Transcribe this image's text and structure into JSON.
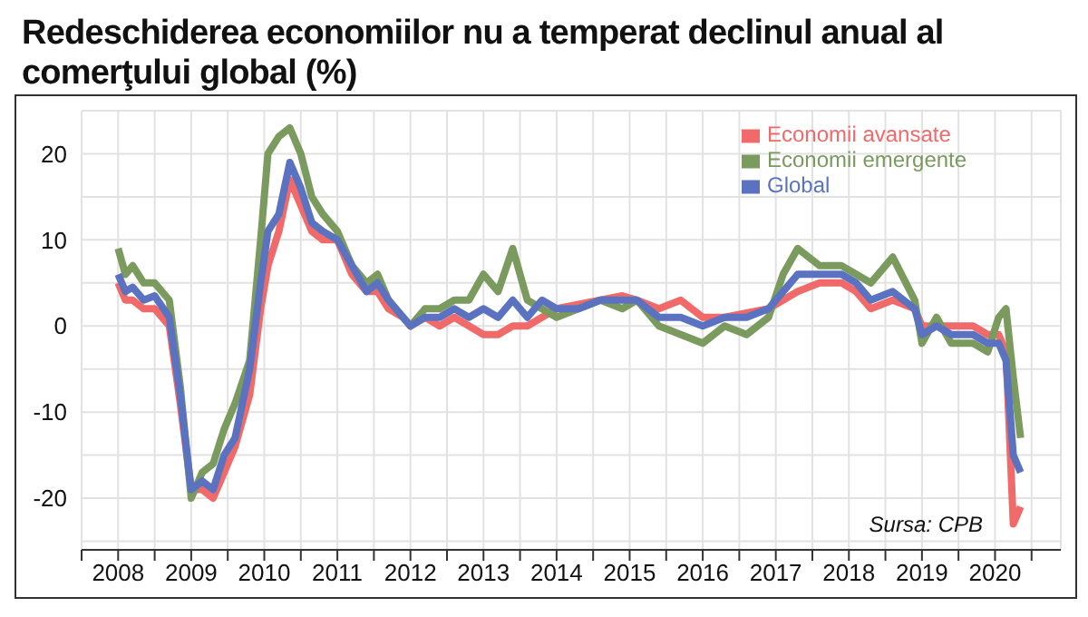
{
  "chart_data": {
    "type": "line",
    "title": "Redeschiderea economiilor nu a temperat declinul anual al comerţului global (%)",
    "x": [
      2008.0,
      2008.1,
      2008.2,
      2008.35,
      2008.5,
      2008.7,
      2008.85,
      2009.0,
      2009.15,
      2009.3,
      2009.45,
      2009.6,
      2009.8,
      2009.95,
      2010.05,
      2010.2,
      2010.35,
      2010.5,
      2010.65,
      2010.8,
      2011.0,
      2011.2,
      2011.4,
      2011.55,
      2011.7,
      2011.9,
      2012.0,
      2012.2,
      2012.4,
      2012.6,
      2012.8,
      2013.0,
      2013.2,
      2013.4,
      2013.6,
      2013.8,
      2014.0,
      2014.3,
      2014.6,
      2014.9,
      2015.1,
      2015.4,
      2015.7,
      2016.0,
      2016.3,
      2016.6,
      2016.9,
      2017.1,
      2017.3,
      2017.6,
      2017.9,
      2018.1,
      2018.3,
      2018.6,
      2018.9,
      2019.0,
      2019.2,
      2019.4,
      2019.7,
      2019.9,
      2020.05,
      2020.15,
      2020.25,
      2020.35
    ],
    "series": [
      {
        "name": "Economii avansate",
        "color": "#f06a6a",
        "values": [
          5,
          3,
          3,
          2,
          2,
          0,
          -9,
          -19,
          -19,
          -20,
          -17,
          -14,
          -8,
          2,
          7,
          11,
          17,
          14,
          11,
          10,
          10,
          6,
          4,
          4,
          2,
          1,
          0,
          1,
          0,
          1,
          0,
          -1,
          -1,
          0,
          0,
          1,
          2,
          2.5,
          3,
          3.5,
          3,
          2,
          3,
          1,
          1,
          1.5,
          2,
          3,
          4,
          5,
          5,
          4,
          2,
          3,
          2,
          0,
          0,
          0,
          0,
          -1,
          -1,
          -3,
          -23,
          -21
        ]
      },
      {
        "name": "Economii emergente",
        "color": "#7a9a5e",
        "values": [
          9,
          6,
          7,
          5,
          5,
          3,
          -7,
          -20,
          -17,
          -16,
          -12,
          -9,
          -4,
          10,
          20,
          22,
          23,
          20,
          15,
          13,
          11,
          7,
          5,
          6,
          3,
          1,
          0,
          2,
          2,
          3,
          3,
          6,
          4,
          9,
          3,
          2,
          1,
          2,
          3,
          2,
          3,
          0,
          -1,
          -2,
          0,
          -1,
          1,
          6,
          9,
          7,
          7,
          6,
          5,
          8,
          3,
          -2,
          1,
          -2,
          -2,
          -3,
          1,
          2,
          -6,
          -13
        ]
      },
      {
        "name": "Global",
        "color": "#5b72c0",
        "values": [
          6,
          4,
          4.5,
          3,
          3.5,
          1,
          -8,
          -19,
          -18,
          -19,
          -15,
          -13,
          -5,
          5,
          11,
          13,
          19,
          16,
          12,
          11,
          10,
          7,
          4,
          5,
          3,
          1,
          0,
          1,
          1,
          2,
          1,
          2,
          1,
          3,
          1,
          3,
          2,
          2,
          3,
          3,
          3,
          1,
          1,
          0,
          1,
          1,
          2,
          4,
          6,
          6,
          6,
          5,
          3,
          4,
          2,
          -1,
          0,
          -1,
          -1,
          -2,
          -2,
          -4,
          -15,
          -17
        ]
      }
    ],
    "xlim": [
      2007.5,
      2020.9
    ],
    "xticks": [
      {
        "value": 2007.5,
        "label": null
      },
      2008,
      {
        "value": 2008.5,
        "label": null
      },
      2009,
      {
        "value": 2009.5,
        "label": null
      },
      2010,
      {
        "value": 2010.5,
        "label": null
      },
      2011,
      {
        "value": 2011.5,
        "label": null
      },
      2012,
      {
        "value": 2012.5,
        "label": null
      },
      2013,
      {
        "value": 2013.5,
        "label": null
      },
      2014,
      {
        "value": 2014.5,
        "label": null
      },
      2015,
      {
        "value": 2015.5,
        "label": null
      },
      2016,
      {
        "value": 2016.5,
        "label": null
      },
      2017,
      {
        "value": 2017.5,
        "label": null
      },
      2018,
      {
        "value": 2018.5,
        "label": null
      },
      2019,
      {
        "value": 2019.5,
        "label": null
      },
      2020,
      {
        "value": 2020.5,
        "label": null
      }
    ],
    "ylim": [
      -26,
      25
    ],
    "yticks": [
      {
        "value": -25,
        "label": null
      },
      -20,
      {
        "value": -15,
        "label": null
      },
      -10,
      {
        "value": -5,
        "label": null
      },
      0,
      {
        "value": 5,
        "label": null
      },
      10,
      {
        "value": 15,
        "label": null
      },
      20
    ],
    "grid": true,
    "legend": "top right",
    "marker": "none",
    "line_style": "solid",
    "annotations": [
      "Sursa: CPB"
    ]
  }
}
